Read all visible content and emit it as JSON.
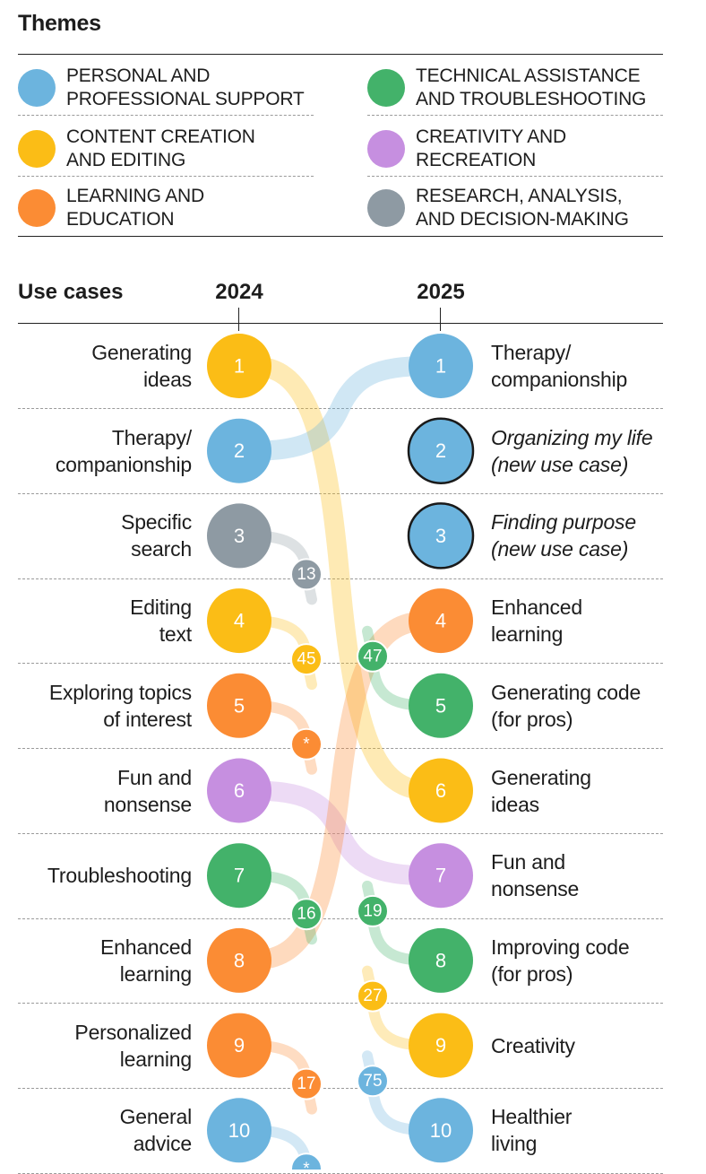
{
  "themes": {
    "title": "Themes",
    "items": [
      {
        "key": "personal",
        "label": "PERSONAL AND\nPROFESSIONAL SUPPORT",
        "color": "#6cb4de"
      },
      {
        "key": "technical",
        "label": "TECHNICAL ASSISTANCE\nAND TROUBLESHOOTING",
        "color": "#43b26a"
      },
      {
        "key": "content",
        "label": "CONTENT CREATION\nAND EDITING",
        "color": "#fbbd16"
      },
      {
        "key": "creativity",
        "label": "CREATIVITY AND\nRECREATION",
        "color": "#c68fe0"
      },
      {
        "key": "learning",
        "label": "LEARNING AND\nEDUCATION",
        "color": "#fb8c34"
      },
      {
        "key": "research",
        "label": "RESEARCH, ANALYSIS,\nAND DECISION-MAKING",
        "color": "#8e9aa3"
      }
    ]
  },
  "use_cases": {
    "title": "Use cases",
    "year_left": "2024",
    "year_right": "2025"
  },
  "chart_data": {
    "type": "bump",
    "title": "Use cases",
    "columns": [
      "2024",
      "2025"
    ],
    "left": [
      {
        "rank": "1",
        "label": "Generating\nideas",
        "theme": "content",
        "to_rank": 6
      },
      {
        "rank": "2",
        "label": "Therapy/\ncompanionship",
        "theme": "personal",
        "to_rank": 1
      },
      {
        "rank": "3",
        "label": "Specific\nsearch",
        "theme": "research",
        "to_rank": 13,
        "drop_label": "13"
      },
      {
        "rank": "4",
        "label": "Editing\ntext",
        "theme": "content",
        "to_rank": 45,
        "drop_label": "45"
      },
      {
        "rank": "5",
        "label": "Exploring topics\nof interest",
        "theme": "learning",
        "to_rank": null,
        "drop_label": "*"
      },
      {
        "rank": "6",
        "label": "Fun and\nnonsense",
        "theme": "creativity",
        "to_rank": 7
      },
      {
        "rank": "7",
        "label": "Troubleshooting",
        "theme": "technical",
        "to_rank": 16,
        "drop_label": "16"
      },
      {
        "rank": "8",
        "label": "Enhanced\nlearning",
        "theme": "learning",
        "to_rank": 4
      },
      {
        "rank": "9",
        "label": "Personalized\nlearning",
        "theme": "learning",
        "to_rank": 17,
        "drop_label": "17"
      },
      {
        "rank": "10",
        "label": "General\nadvice",
        "theme": "personal",
        "to_rank": null,
        "drop_label": "*"
      }
    ],
    "right": [
      {
        "rank": "1",
        "label": "Therapy/\ncompanionship",
        "theme": "personal",
        "from_rank": 2
      },
      {
        "rank": "2",
        "label": "Organizing my life\n(new use case)",
        "theme": "personal",
        "new": true
      },
      {
        "rank": "3",
        "label": "Finding purpose\n(new use case)",
        "theme": "personal",
        "new": true
      },
      {
        "rank": "4",
        "label": "Enhanced\nlearning",
        "theme": "learning",
        "from_rank": 8
      },
      {
        "rank": "5",
        "label": "Generating code\n(for pros)",
        "theme": "technical",
        "from_rank": 47,
        "rise_label": "47"
      },
      {
        "rank": "6",
        "label": "Generating\nideas",
        "theme": "content",
        "from_rank": 1
      },
      {
        "rank": "7",
        "label": "Fun and\nnonsense",
        "theme": "creativity",
        "from_rank": 6
      },
      {
        "rank": "8",
        "label": "Improving code\n(for pros)",
        "theme": "technical",
        "from_rank": 19,
        "rise_label": "19"
      },
      {
        "rank": "9",
        "label": "Creativity",
        "theme": "content",
        "from_rank": 27,
        "rise_label": "27"
      },
      {
        "rank": "10",
        "label": "Healthier\nliving",
        "theme": "personal",
        "from_rank": 75,
        "rise_label": "75"
      }
    ]
  }
}
